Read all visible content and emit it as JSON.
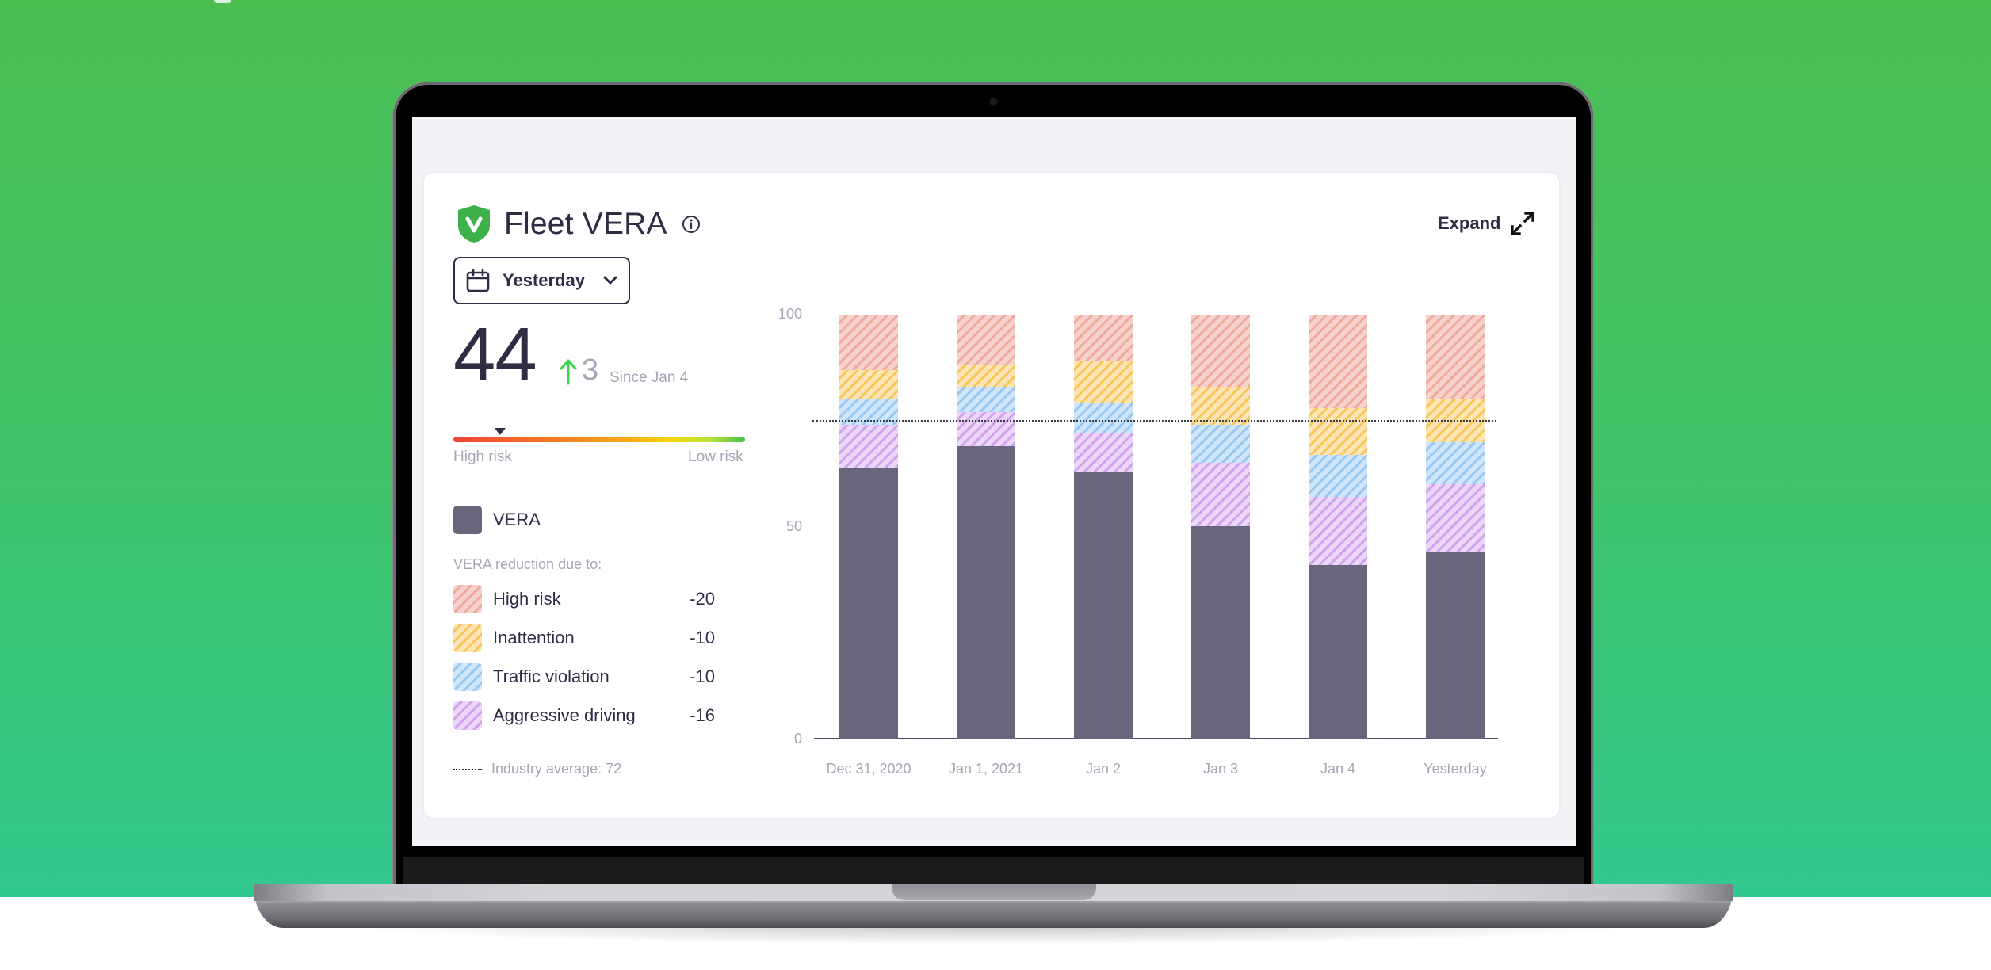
{
  "widget": {
    "title": "Fleet VERA",
    "expand_label": "Expand",
    "date_range": {
      "selected": "Yesterday"
    },
    "score": {
      "value": "44",
      "delta_value": "3",
      "delta_direction": "up",
      "since_label": "Since Jan 4"
    },
    "risk_scale": {
      "left_label": "High risk",
      "right_label": "Low risk",
      "marker_percent": 16
    },
    "legend": {
      "vera_label": "VERA",
      "caption": "VERA reduction due to:",
      "items": [
        {
          "label": "High risk",
          "value": "-20",
          "color": "#f1a99d"
        },
        {
          "label": "Inattention",
          "value": "-10",
          "color": "#f8c75b"
        },
        {
          "label": "Traffic violation",
          "value": "-10",
          "color": "#97c9f4"
        },
        {
          "label": "Aggressive driving",
          "value": "-16",
          "color": "#d1a3ef"
        }
      ],
      "industry_average_label": "Industry average: 72"
    }
  },
  "colors": {
    "vera": "#67667c",
    "text_primary": "#2e2d44",
    "text_muted": "#a6a6b5",
    "brand_green": "#3fb14a",
    "background_top": "#4bbe52",
    "background_bottom": "#31c88f"
  },
  "chart_data": {
    "type": "bar",
    "stacked": true,
    "title": "Fleet VERA",
    "xlabel": "",
    "ylabel": "",
    "ylim": [
      0,
      100
    ],
    "yticks": [
      "100",
      "50",
      "0"
    ],
    "categories": [
      "Dec 31, 2020",
      "Jan 1, 2021",
      "Jan 2",
      "Jan 3",
      "Jan 4",
      "Yesterday"
    ],
    "series": [
      {
        "name": "VERA",
        "values": [
          64,
          69,
          63,
          50,
          41,
          44
        ]
      },
      {
        "name": "Aggressive driving",
        "values": [
          10,
          8,
          9,
          15,
          16,
          16
        ]
      },
      {
        "name": "Traffic violation",
        "values": [
          6,
          6,
          7,
          9,
          10,
          10
        ]
      },
      {
        "name": "Inattention",
        "values": [
          7,
          5,
          10,
          9,
          11,
          10
        ]
      },
      {
        "name": "High risk",
        "values": [
          13,
          12,
          11,
          17,
          22,
          20
        ]
      }
    ],
    "reference_line": {
      "label": "Industry average",
      "value": 72,
      "style": "dotted"
    },
    "grid": false,
    "legend_position": "left"
  }
}
